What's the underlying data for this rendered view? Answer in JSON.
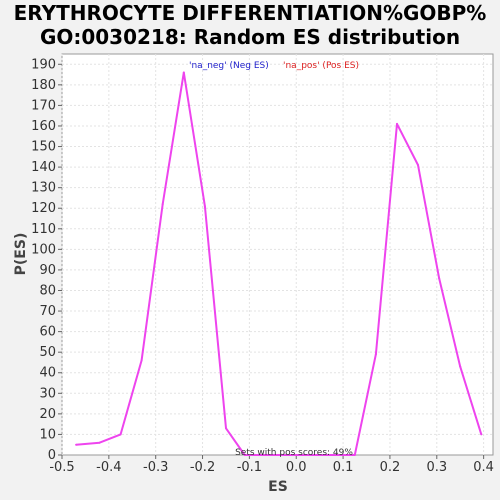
{
  "chart_data": {
    "type": "line",
    "title_line1": "ERYTHROCYTE DIFFERENTIATION%GOBP%",
    "title_line2": "GO:0030218: Random ES distribution",
    "xlabel": "ES",
    "ylabel": "P(ES)",
    "xlim": [
      -0.5,
      0.42
    ],
    "ylim": [
      0,
      195
    ],
    "xticks": [
      -0.5,
      -0.4,
      -0.3,
      -0.2,
      -0.1,
      0.0,
      0.1,
      0.2,
      0.3,
      0.4
    ],
    "xtick_labels": [
      "-0.5",
      "-0.4",
      "-0.3",
      "-0.2",
      "-0.1",
      "0.0",
      "0.1",
      "0.2",
      "0.3",
      "0.4"
    ],
    "yticks": [
      0,
      10,
      20,
      30,
      40,
      50,
      60,
      70,
      80,
      90,
      100,
      110,
      120,
      130,
      140,
      150,
      160,
      170,
      180,
      190
    ],
    "grid": true,
    "legend": [
      {
        "label": "'na_neg' (Neg ES)",
        "color": "#2222cc"
      },
      {
        "label": "'na_pos' (Pos ES)",
        "color": "#dd2222"
      }
    ],
    "annotation": "Sets with pos scores: 49%",
    "series": [
      {
        "color": "#ee44ee",
        "x": [
          -0.47,
          -0.42,
          -0.375,
          -0.33,
          -0.285,
          -0.24,
          -0.195,
          -0.15,
          -0.11,
          -0.07,
          -0.02,
          0.03,
          0.08,
          0.125,
          0.17,
          0.215,
          0.26,
          0.305,
          0.35,
          0.395
        ],
        "y": [
          5,
          6,
          10,
          46,
          122,
          186,
          121,
          13,
          0,
          0,
          0,
          0,
          0,
          0,
          49,
          161,
          141,
          86,
          43,
          10
        ]
      }
    ]
  }
}
